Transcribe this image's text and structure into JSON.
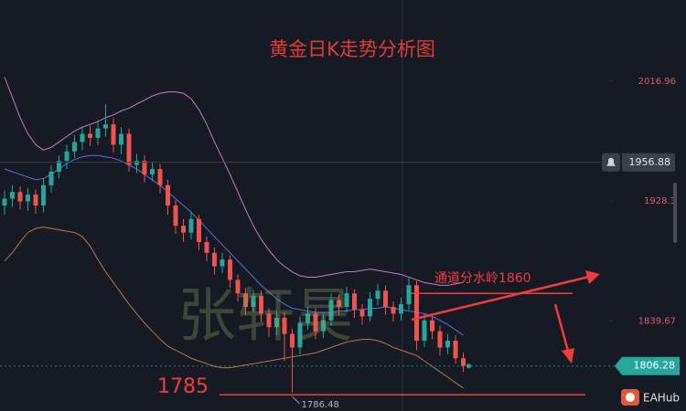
{
  "chart_data": {
    "type": "candlestick",
    "title": "黄金日K走势分析图",
    "ylim": [
      1773,
      2077
    ],
    "yticks": [
      2016.96,
      1928.3,
      1839.67
    ],
    "up_color": "#26a69a",
    "down_color": "#ef5350",
    "open": [
      1925,
      1930,
      1935,
      1928,
      1933,
      1925,
      1940,
      1950,
      1958,
      1965,
      1972,
      1978,
      1975,
      1982,
      1985,
      1970,
      1978,
      1955,
      1958,
      1948,
      1952,
      1940,
      1925,
      1910,
      1905,
      1915,
      1898,
      1890,
      1880,
      1885,
      1870,
      1860,
      1850,
      1858,
      1845,
      1835,
      1842,
      1830,
      1820,
      1838,
      1845,
      1832,
      1840,
      1855,
      1850,
      1860,
      1848,
      1843,
      1856,
      1862,
      1850,
      1845,
      1852,
      1866,
      1825,
      1840,
      1832,
      1820,
      1825,
      1812
    ],
    "high": [
      1936,
      1940,
      1939,
      1938,
      1937,
      1945,
      1955,
      1962,
      1970,
      1977,
      1983,
      1984,
      1988,
      2000,
      1990,
      1983,
      1982,
      1963,
      1962,
      1957,
      1956,
      1944,
      1929,
      1915,
      1920,
      1918,
      1902,
      1894,
      1890,
      1888,
      1874,
      1864,
      1863,
      1862,
      1849,
      1847,
      1846,
      1834,
      1843,
      1850,
      1849,
      1845,
      1860,
      1859,
      1865,
      1863,
      1852,
      1861,
      1867,
      1866,
      1854,
      1857,
      1872,
      1869,
      1845,
      1844,
      1836,
      1830,
      1829,
      1816
    ],
    "low": [
      1918,
      1924,
      1922,
      1921,
      1919,
      1920,
      1935,
      1945,
      1952,
      1960,
      1966,
      1969,
      1970,
      1976,
      1964,
      1963,
      1950,
      1949,
      1942,
      1943,
      1934,
      1918,
      1904,
      1898,
      1900,
      1892,
      1884,
      1874,
      1875,
      1864,
      1854,
      1844,
      1846,
      1839,
      1828,
      1829,
      1810,
      1786.48,
      1815,
      1833,
      1826,
      1827,
      1836,
      1844,
      1846,
      1842,
      1837,
      1839,
      1851,
      1844,
      1839,
      1840,
      1848,
      1818,
      1820,
      1826,
      1814,
      1815,
      1808,
      1802
    ],
    "close": [
      1930,
      1935,
      1928,
      1933,
      1925,
      1940,
      1950,
      1958,
      1965,
      1972,
      1978,
      1975,
      1982,
      1985,
      1970,
      1978,
      1955,
      1958,
      1948,
      1952,
      1940,
      1925,
      1910,
      1905,
      1915,
      1898,
      1890,
      1880,
      1885,
      1870,
      1860,
      1850,
      1858,
      1845,
      1835,
      1842,
      1830,
      1820,
      1838,
      1845,
      1832,
      1840,
      1855,
      1850,
      1860,
      1848,
      1843,
      1856,
      1862,
      1850,
      1845,
      1852,
      1866,
      1825,
      1840,
      1832,
      1820,
      1825,
      1812,
      1806.28
    ],
    "bands": [
      {
        "color": "#c77dbb",
        "values": [
          2020,
          2005,
          1990,
          1978,
          1970,
          1966,
          1968,
          1972,
          1976,
          1980,
          1983,
          1985,
          1987,
          1990,
          1992,
          1995,
          1997,
          2000,
          2003,
          2006,
          2008,
          2009,
          2009,
          2008,
          2004,
          1996,
          1985,
          1972,
          1960,
          1948,
          1935,
          1922,
          1910,
          1900,
          1892,
          1885,
          1880,
          1876,
          1873,
          1872,
          1872,
          1873,
          1874,
          1875,
          1876,
          1876,
          1877,
          1878,
          1877,
          1876,
          1875,
          1874,
          1872,
          1870,
          1868,
          1867,
          1866,
          1866,
          1867,
          1868
        ]
      },
      {
        "color": "#5b6ee1",
        "values": [
          1952,
          1950,
          1948,
          1946,
          1944,
          1945,
          1948,
          1952,
          1956,
          1959,
          1961,
          1962,
          1962,
          1961,
          1960,
          1958,
          1955,
          1952,
          1948,
          1944,
          1940,
          1935,
          1930,
          1925,
          1920,
          1914,
          1908,
          1902,
          1896,
          1890,
          1884,
          1878,
          1872,
          1866,
          1861,
          1856,
          1852,
          1849,
          1848,
          1847,
          1846,
          1846,
          1846,
          1847,
          1847,
          1848,
          1848,
          1849,
          1849,
          1850,
          1849,
          1848,
          1847,
          1846,
          1845,
          1843,
          1840,
          1837,
          1833,
          1829
        ]
      },
      {
        "color": "#b7773f",
        "values": [
          1884,
          1890,
          1898,
          1905,
          1908,
          1909,
          1908,
          1907,
          1906,
          1905,
          1902,
          1895,
          1885,
          1876,
          1868,
          1860,
          1852,
          1845,
          1838,
          1832,
          1826,
          1821,
          1818,
          1815,
          1812,
          1810,
          1808,
          1806,
          1805,
          1805,
          1806,
          1807,
          1808,
          1809,
          1810,
          1811,
          1812,
          1813,
          1814,
          1815,
          1816,
          1818,
          1820,
          1822,
          1824,
          1825,
          1826,
          1826,
          1825,
          1823,
          1820,
          1818,
          1816,
          1814,
          1810,
          1806,
          1802,
          1798,
          1794,
          1790
        ]
      }
    ],
    "price_line": 1956.88,
    "current_price": 1806.28,
    "low_label": 1786.48,
    "watershed": {
      "label": "通道分水岭1860",
      "value": 1860
    },
    "support": 1785,
    "watermark": "张轩昊",
    "brand": "EAHub"
  }
}
